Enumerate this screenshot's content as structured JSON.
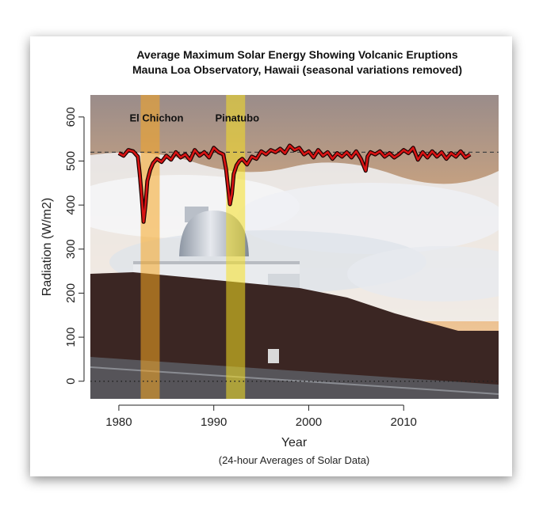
{
  "chart_data": {
    "type": "line",
    "title": "Average Maximum Solar Energy Showing Volcanic Eruptions",
    "subtitle": "Mauna Loa Observatory, Hawaii (seasonal variations removed)",
    "xlabel": "Year",
    "xlabel_note": "(24-hour Averages of Solar Data)",
    "ylabel": "Radiation (W/m2)",
    "xlim": [
      1977,
      2020
    ],
    "ylim": [
      -40,
      650
    ],
    "xticks": [
      1980,
      1990,
      2000,
      2010
    ],
    "yticks": [
      0,
      100,
      200,
      300,
      400,
      500,
      600
    ],
    "reference_line": 520,
    "zero_line": 0,
    "grid": false,
    "series_color": "#d81414",
    "annotations": [
      {
        "label": "El Chichon",
        "band": [
          1982.3,
          1984.3
        ],
        "color": "#f5a623"
      },
      {
        "label": "Pinatubo",
        "band": [
          1991.3,
          1993.3
        ],
        "color": "#f5e023"
      }
    ],
    "series": [
      {
        "x": [
          1980.0,
          1980.5,
          1981.0,
          1981.5,
          1982.0,
          1982.2,
          1982.4,
          1982.6,
          1982.8,
          1983.0,
          1983.3,
          1983.6,
          1984.0,
          1984.5,
          1985.0,
          1985.5,
          1986.0,
          1986.5,
          1987.0,
          1987.5,
          1988.0,
          1988.5,
          1989.0,
          1989.5,
          1990.0,
          1990.5,
          1991.0,
          1991.3,
          1991.5,
          1991.7,
          1991.9,
          1992.1,
          1992.4,
          1992.7,
          1993.0,
          1993.5,
          1994.0,
          1994.5,
          1995.0,
          1995.5,
          1996.0,
          1996.5,
          1997.0,
          1997.5,
          1998.0,
          1998.5,
          1999.0,
          1999.5,
          2000.0,
          2000.5,
          2001.0,
          2001.5,
          2002.0,
          2002.5,
          2003.0,
          2003.5,
          2004.0,
          2004.5,
          2005.0,
          2005.5,
          2006.0,
          2006.2,
          2006.5,
          2007.0,
          2007.5,
          2008.0,
          2008.5,
          2009.0,
          2009.5,
          2010.0,
          2010.5,
          2011.0,
          2011.5,
          2012.0,
          2012.5,
          2013.0,
          2013.5,
          2014.0,
          2014.5,
          2015.0,
          2015.5,
          2016.0,
          2016.5,
          2017.0
        ],
        "y": [
          518,
          512,
          525,
          522,
          510,
          470,
          420,
          362,
          400,
          455,
          480,
          495,
          505,
          498,
          512,
          503,
          520,
          508,
          515,
          502,
          525,
          512,
          520,
          508,
          530,
          520,
          515,
          480,
          440,
          402,
          425,
          470,
          490,
          500,
          505,
          492,
          510,
          505,
          522,
          515,
          525,
          520,
          528,
          518,
          535,
          525,
          530,
          515,
          522,
          508,
          525,
          512,
          520,
          505,
          518,
          510,
          520,
          508,
          522,
          505,
          478,
          510,
          520,
          515,
          522,
          510,
          518,
          508,
          515,
          525,
          518,
          530,
          503,
          520,
          508,
          522,
          510,
          520,
          505,
          518,
          510,
          522,
          508,
          515
        ]
      }
    ]
  },
  "colors": {
    "sky_top": "#9a8c8a",
    "sky_glow": "#e8b27a",
    "clouds": "#eef0f3",
    "ridge": "#3b2623",
    "dome": "#c9ced6",
    "building": "#e9ebee"
  }
}
